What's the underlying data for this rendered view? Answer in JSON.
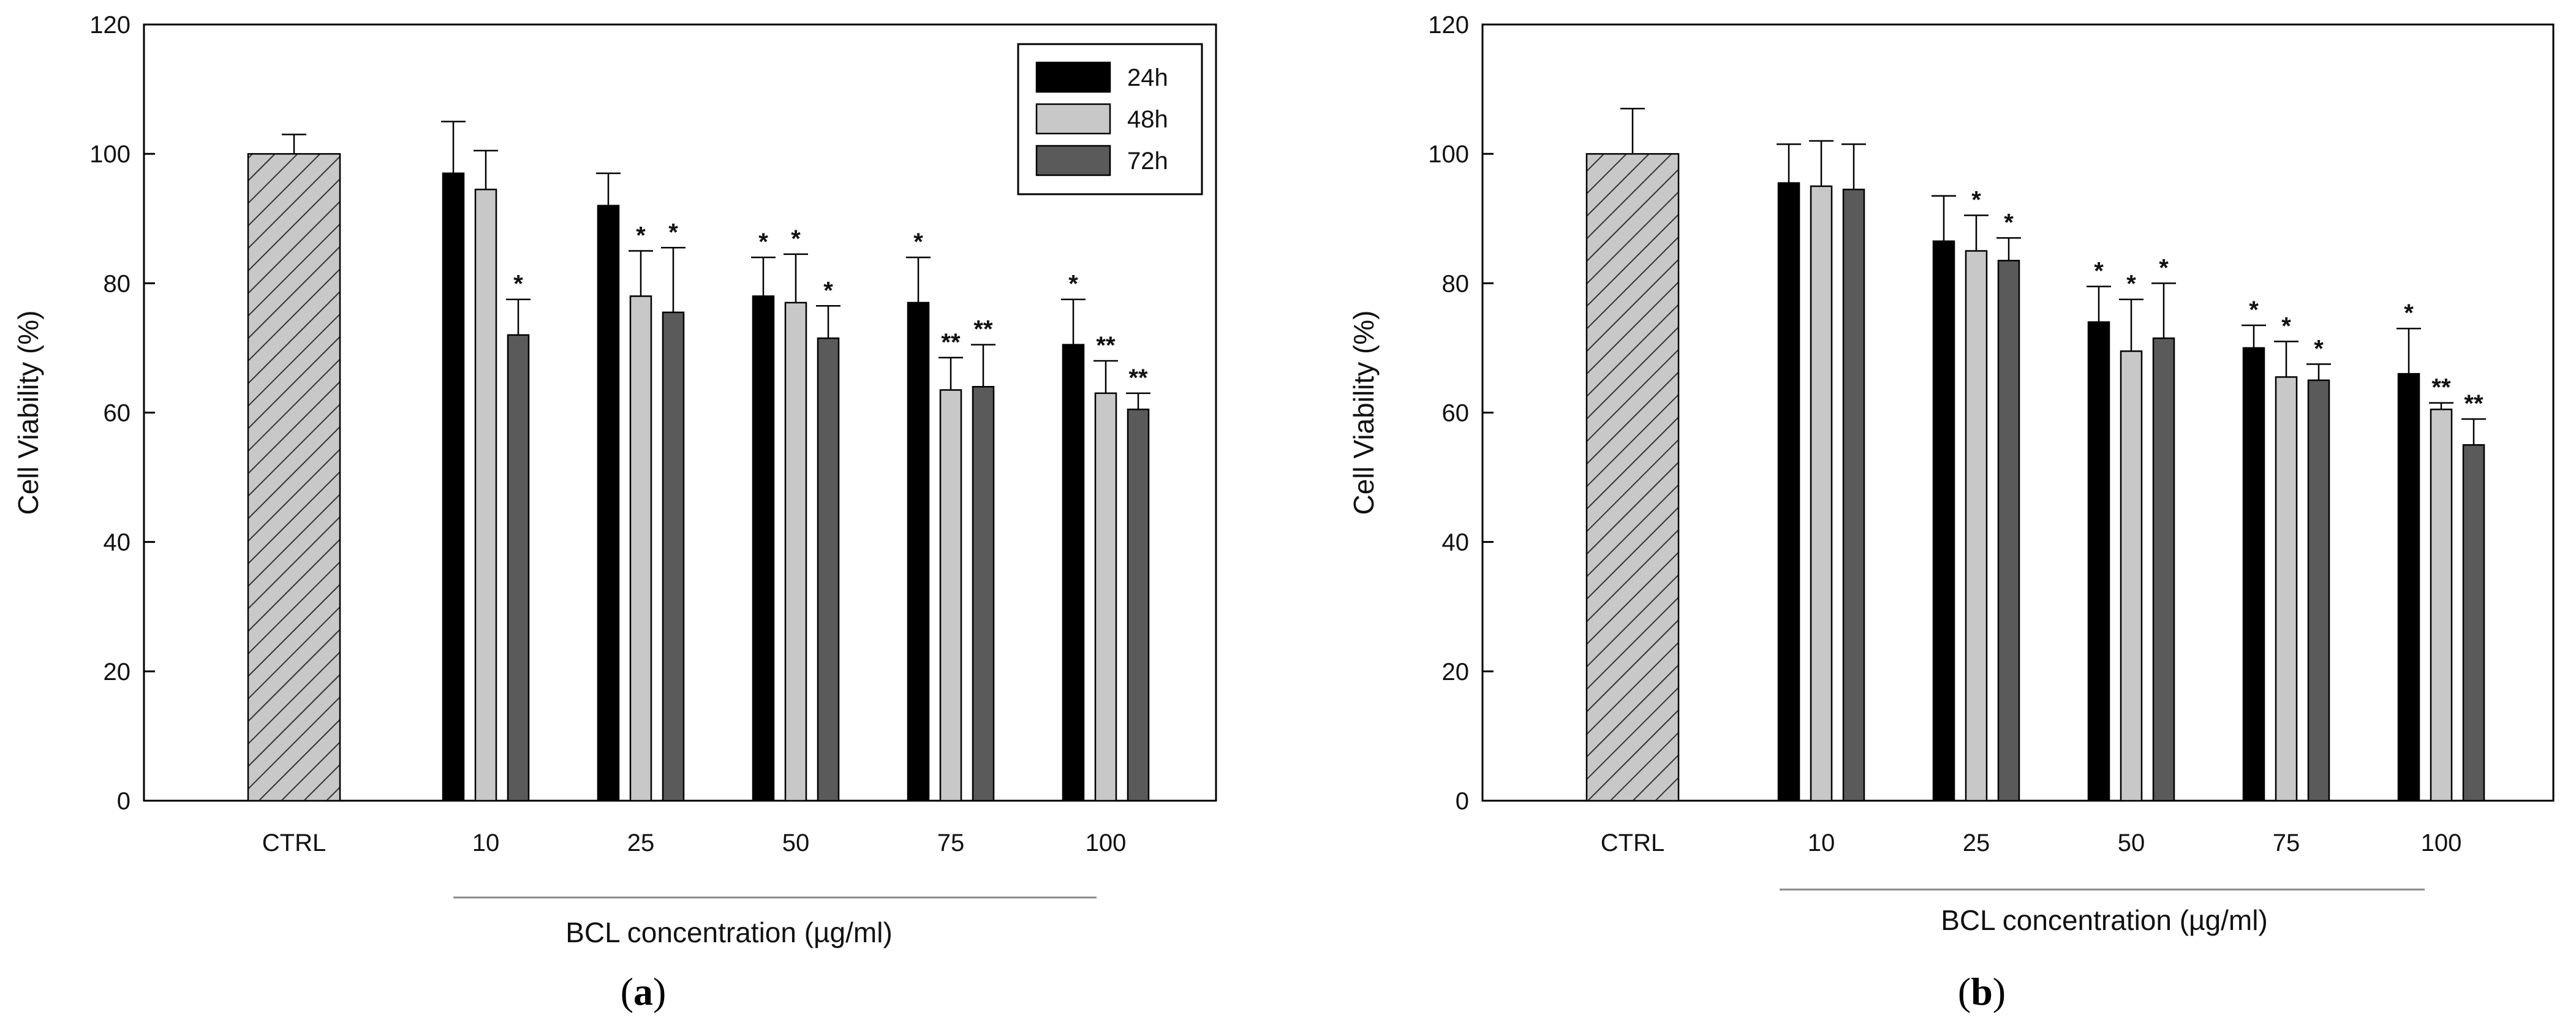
{
  "colors": {
    "24h": "#000000",
    "48h": "#c8c8c8",
    "72h": "#5a5a5a",
    "ctrl_fill": "#c8c8c8",
    "ctrl_hatch": "#333333",
    "bracket": "#888888"
  },
  "chart_data": [
    {
      "panel": "a",
      "type": "bar",
      "ylabel": "Cell Viability (%)",
      "xlabel": "BCL concentration (µg/ml)",
      "ylim": [
        0,
        120
      ],
      "yticks": [
        0,
        20,
        40,
        60,
        80,
        100,
        120
      ],
      "legend_position": "top-right",
      "control": {
        "label": "CTRL",
        "value": 100,
        "error": 3
      },
      "categories": [
        "10",
        "25",
        "50",
        "75",
        "100"
      ],
      "series": [
        {
          "name": "24h",
          "values": [
            97,
            92,
            78,
            77,
            70.5
          ],
          "errors": [
            8,
            5,
            6,
            7,
            7
          ],
          "significance": [
            "",
            "",
            "*",
            "*",
            "*"
          ]
        },
        {
          "name": "48h",
          "values": [
            94.5,
            78,
            77,
            63.5,
            63
          ],
          "errors": [
            6,
            7,
            7.5,
            5,
            5
          ],
          "significance": [
            "",
            "*",
            "*",
            "**",
            "**"
          ]
        },
        {
          "name": "72h",
          "values": [
            72,
            75.5,
            71.5,
            64,
            60.5
          ],
          "errors": [
            5.5,
            10,
            5,
            6.5,
            2.5
          ],
          "significance": [
            "*",
            "*",
            "*",
            "**",
            "**"
          ]
        }
      ]
    },
    {
      "panel": "b",
      "type": "bar",
      "ylabel": "Cell Viability (%)",
      "xlabel": "BCL concentration (µg/ml)",
      "ylim": [
        0,
        120
      ],
      "yticks": [
        0,
        20,
        40,
        60,
        80,
        100,
        120
      ],
      "legend_position": "none",
      "control": {
        "label": "CTRL",
        "value": 100,
        "error": 7
      },
      "categories": [
        "10",
        "25",
        "50",
        "75",
        "100"
      ],
      "series": [
        {
          "name": "24h",
          "values": [
            95.5,
            86.5,
            74,
            70,
            66
          ],
          "errors": [
            6,
            7,
            5.5,
            3.5,
            7
          ],
          "significance": [
            "",
            "",
            "*",
            "*",
            "*"
          ]
        },
        {
          "name": "48h",
          "values": [
            95,
            85,
            69.5,
            65.5,
            60.5
          ],
          "errors": [
            7,
            5.5,
            8,
            5.5,
            1
          ],
          "significance": [
            "",
            "*",
            "*",
            "*",
            "**"
          ]
        },
        {
          "name": "72h",
          "values": [
            94.5,
            83.5,
            71.5,
            65,
            55
          ],
          "errors": [
            7,
            3.5,
            8.5,
            2.5,
            4
          ],
          "significance": [
            "",
            "*",
            "*",
            "*",
            "**"
          ]
        }
      ]
    }
  ],
  "panel_labels": [
    {
      "open": "(",
      "letter": "a",
      "close": ")"
    },
    {
      "open": "(",
      "letter": "b",
      "close": ")"
    }
  ]
}
